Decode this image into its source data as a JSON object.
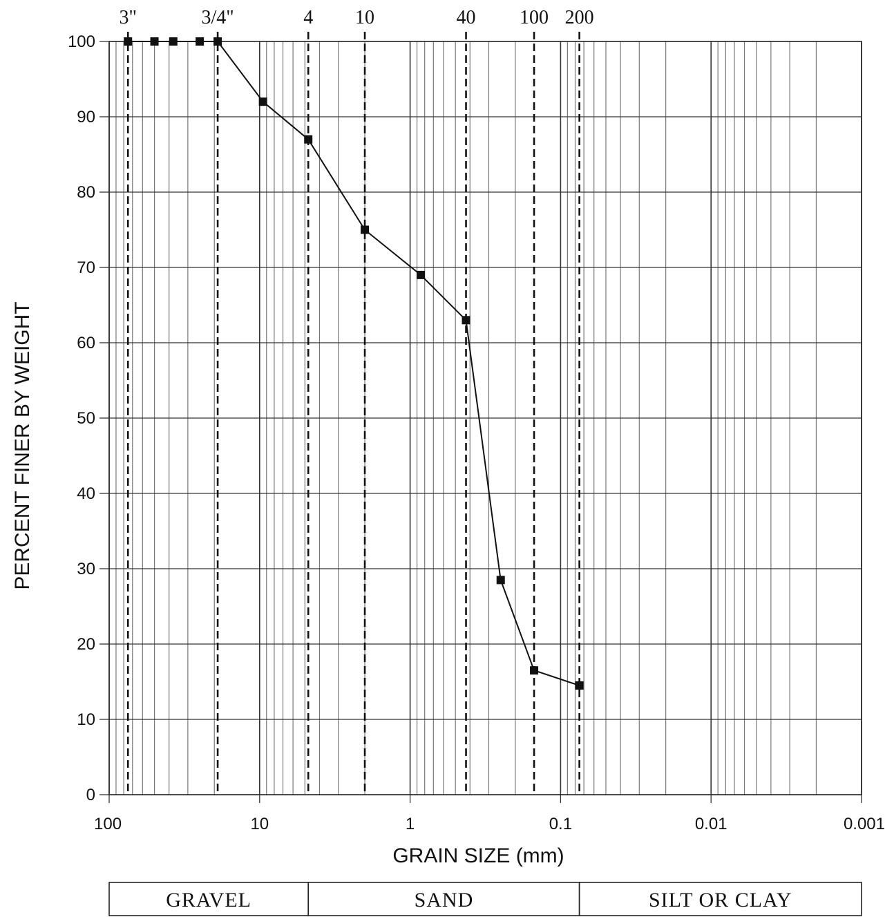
{
  "chart_data": {
    "type": "line",
    "title": "",
    "xlabel": "GRAIN SIZE (mm)",
    "ylabel": "PERCENT FINER BY WEIGHT",
    "x_scale": "log",
    "x_reversed": true,
    "xlim": [
      100,
      0.001
    ],
    "ylim": [
      0,
      100
    ],
    "x_ticks": [
      100,
      10,
      1,
      0.1,
      0.01,
      0.001
    ],
    "x_tick_labels": [
      "100",
      "10",
      "1",
      "0.1",
      "0.01",
      "0.001"
    ],
    "y_ticks": [
      0,
      10,
      20,
      30,
      40,
      50,
      60,
      70,
      80,
      90,
      100
    ],
    "y_tick_labels": [
      "0",
      "10",
      "20",
      "30",
      "40",
      "50",
      "60",
      "70",
      "80",
      "90",
      "100"
    ],
    "grid": true,
    "series": [
      {
        "marker": "square",
        "color": "#111111",
        "x": [
          75,
          50,
          37.5,
          25,
          19,
          9.5,
          4.75,
          2.0,
          0.85,
          0.425,
          0.25,
          0.15,
          0.075
        ],
        "y": [
          100,
          100,
          100,
          100,
          100,
          92,
          87,
          75,
          69,
          63,
          28.5,
          16.5,
          14.5
        ]
      }
    ],
    "sieve_lines": [
      {
        "label": "3\"",
        "size": 75
      },
      {
        "label": "3/4\"",
        "size": 19
      },
      {
        "label": "4",
        "size": 4.75
      },
      {
        "label": "10",
        "size": 2.0
      },
      {
        "label": "40",
        "size": 0.425
      },
      {
        "label": "100",
        "size": 0.15
      },
      {
        "label": "200",
        "size": 0.075
      }
    ],
    "zones": [
      {
        "label": "GRAVEL",
        "from": 100,
        "to": 4.75
      },
      {
        "label": "SAND",
        "from": 4.75,
        "to": 0.075
      },
      {
        "label": "SILT OR CLAY",
        "from": 0.075,
        "to": 0.001
      }
    ]
  }
}
